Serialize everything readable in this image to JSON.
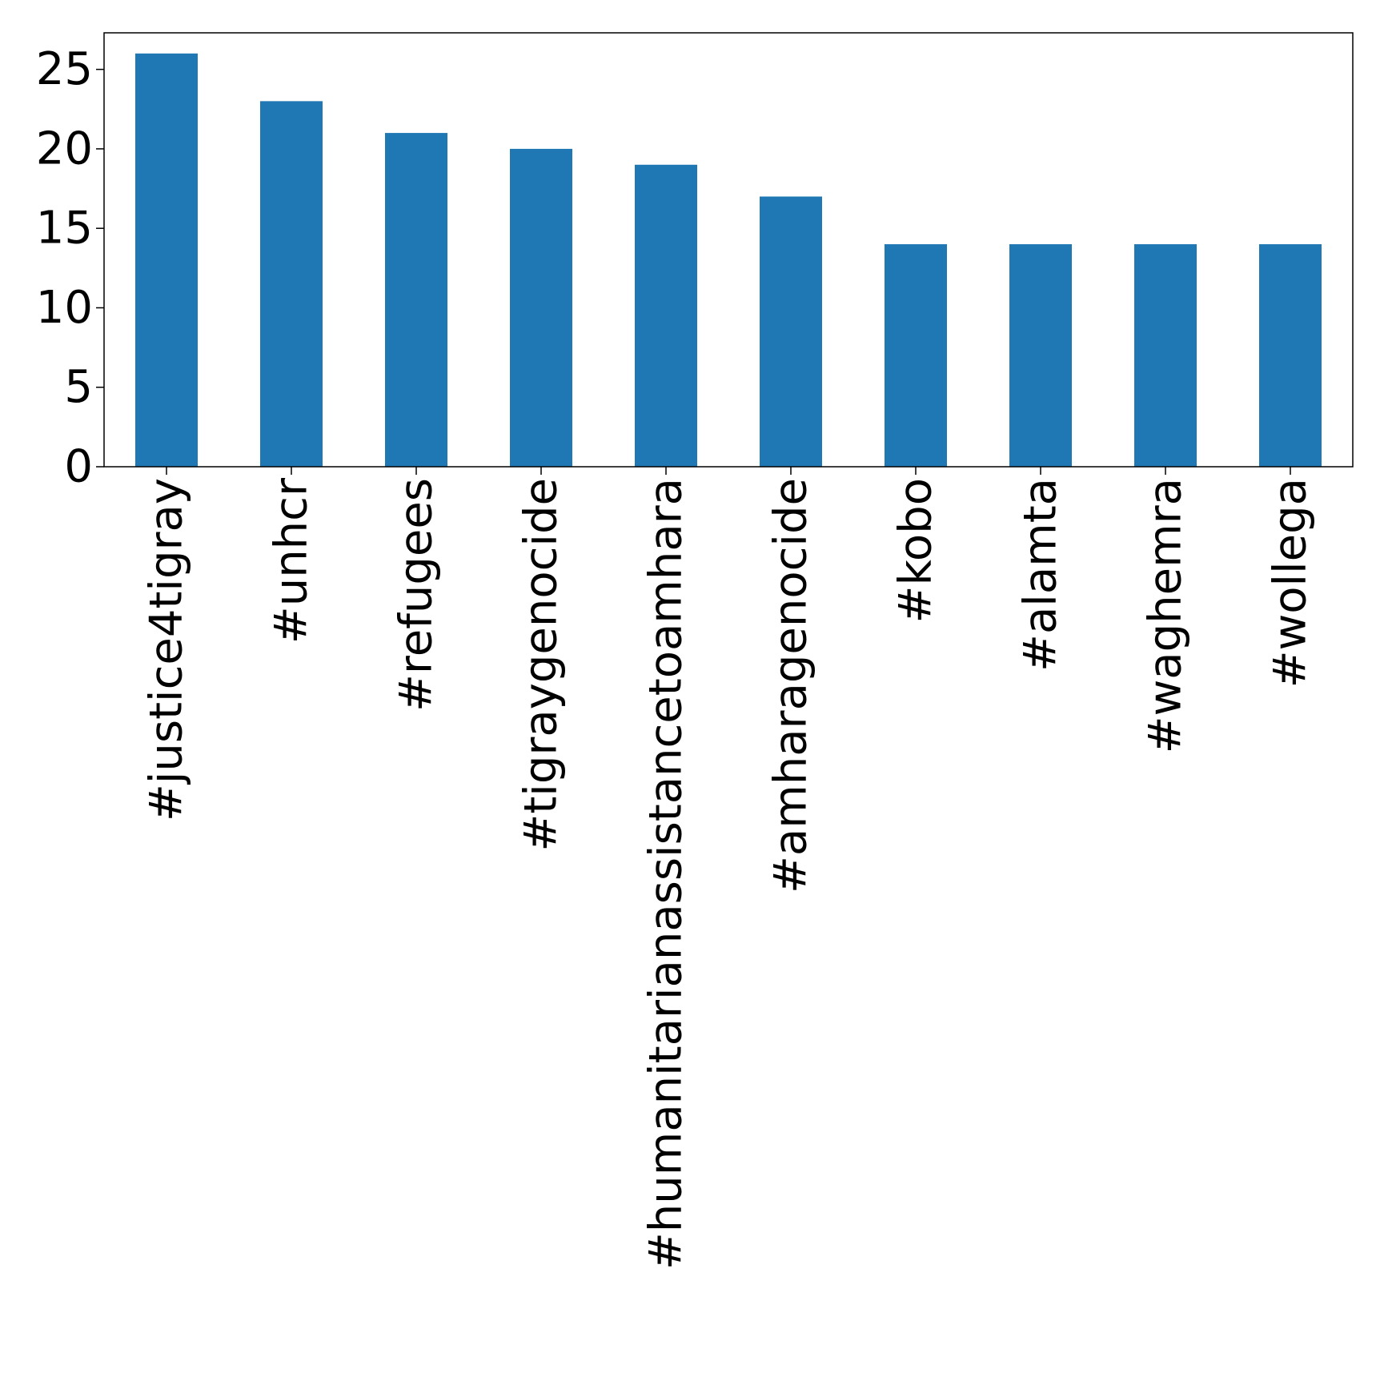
{
  "chart_data": {
    "type": "bar",
    "title": "",
    "xlabel": "",
    "ylabel": "",
    "categories": [
      "#justice4tigray",
      "#unhcr",
      "#refugees",
      "#tigraygenocide",
      "#humanitarianassistancetoamhara",
      "#amharagenocide",
      "#kobo",
      "#alamta",
      "#waghemra",
      "#wollega"
    ],
    "values": [
      26,
      23,
      21,
      20,
      19,
      17,
      14,
      14,
      14,
      14
    ],
    "ylim": [
      0,
      27.3
    ],
    "yticks": [
      0,
      5,
      10,
      15,
      20,
      25
    ],
    "grid": false,
    "legend": "none",
    "colors": {
      "bar": "#1f77b4",
      "axis": "#000000"
    }
  }
}
